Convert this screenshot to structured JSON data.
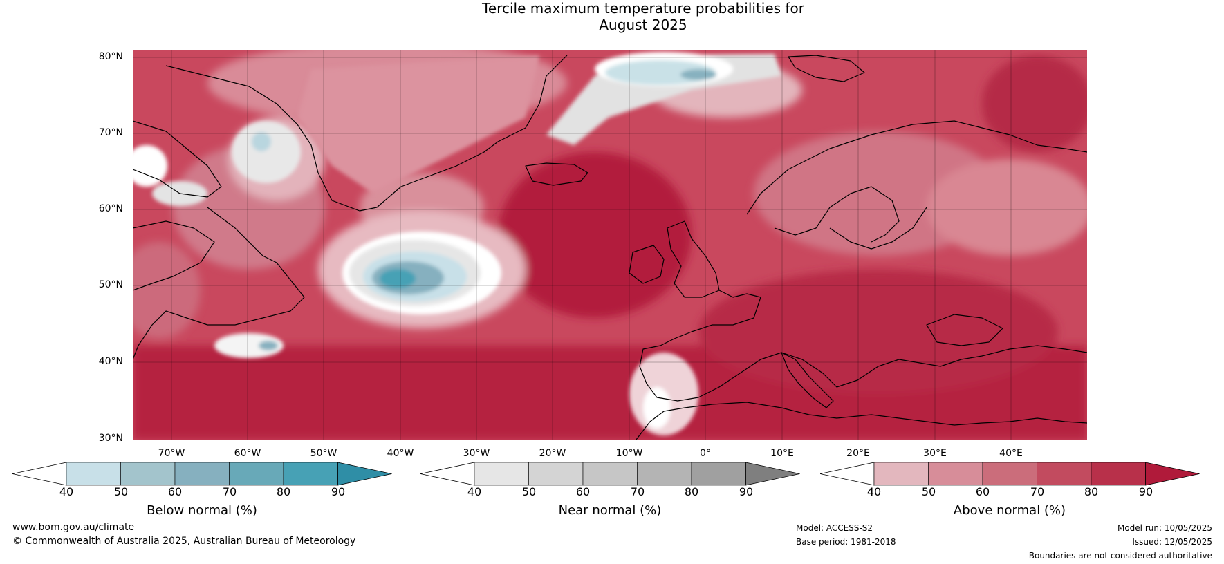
{
  "title_line1": "Tercile maximum temperature probabilities for",
  "title_line2": "August 2025",
  "lat_labels": [
    "80°N",
    "70°N",
    "60°N",
    "50°N",
    "40°N",
    "30°N"
  ],
  "lon_labels": [
    "70°W",
    "60°W",
    "50°W",
    "40°W",
    "30°W",
    "20°W",
    "10°W",
    "0°",
    "10°E",
    "20°E",
    "30°E",
    "40°E"
  ],
  "colorbars": [
    {
      "title": "Below normal (%)",
      "ticks": [
        "40",
        "50",
        "60",
        "70",
        "80",
        "90"
      ],
      "colors": [
        "#ffffff",
        "#c8e0e8",
        "#a3c4cc",
        "#86b0bf",
        "#68a9b8",
        "#47a1b5",
        "#2f8ea6"
      ]
    },
    {
      "title": "Near normal (%)",
      "ticks": [
        "40",
        "50",
        "60",
        "70",
        "80",
        "90"
      ],
      "colors": [
        "#ffffff",
        "#e6e6e6",
        "#d4d4d4",
        "#c6c6c6",
        "#b4b4b4",
        "#a0a0a0",
        "#7f7f7f"
      ]
    },
    {
      "title": "Above normal (%)",
      "ticks": [
        "40",
        "50",
        "60",
        "70",
        "80",
        "90"
      ],
      "colors": [
        "#ffffff",
        "#e3b7be",
        "#d78d99",
        "#cb6d7b",
        "#c24b5f",
        "#b8304a",
        "#b01a3a"
      ]
    }
  ],
  "footer": {
    "url": "www.bom.gov.au/climate",
    "copyright": "© Commonwealth of Australia 2025, Australian Bureau of Meteorology",
    "model": "Model: ACCESS-S2",
    "base_period": "Base period: 1981-2018",
    "model_run": "Model run: 10/05/2025",
    "issued": "Issued: 12/05/2025",
    "disclaimer": "Boundaries are not considered authoritative"
  }
}
